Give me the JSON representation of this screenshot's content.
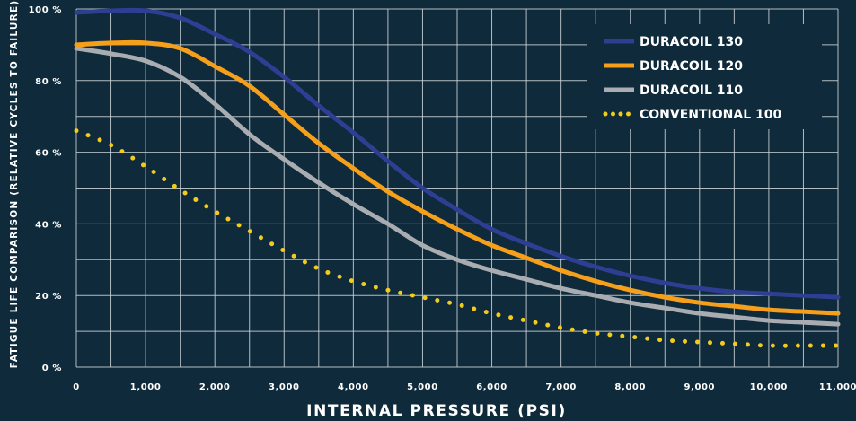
{
  "chart_data": {
    "type": "line",
    "title": "",
    "xlabel": "INTERNAL PRESSURE (PSI)",
    "ylabel": "FATIGUE LIFE COMPARISON (RELATIVE CYCLES TO FAILURE)",
    "xlim": [
      0,
      11000
    ],
    "ylim": [
      0,
      100
    ],
    "x_ticks": [
      0,
      1000,
      2000,
      3000,
      4000,
      5000,
      6000,
      7000,
      8000,
      9000,
      10000,
      11000
    ],
    "x_tick_labels": [
      "0",
      "1,000",
      "2,000",
      "3,000",
      "4,000",
      "5,000",
      "6,000",
      "7,000",
      "8,000",
      "9,000",
      "10,000",
      "11,000"
    ],
    "y_ticks": [
      0,
      20,
      40,
      60,
      80,
      100
    ],
    "y_tick_labels": [
      "0 %",
      "20 %",
      "40 %",
      "60 %",
      "80 %",
      "100 %"
    ],
    "grid": true,
    "x_grid_step": 500,
    "y_grid_step": 10,
    "legend_position": "top-right",
    "background_color": "#0f2a3a",
    "grid_color": "#cfd6db",
    "series": [
      {
        "name": "DURACOIL 130",
        "color": "#2e3f93",
        "style": "solid",
        "x": [
          0,
          500,
          1000,
          1500,
          2000,
          2500,
          3000,
          3500,
          4000,
          4500,
          5000,
          5500,
          6000,
          6500,
          7000,
          7500,
          8000,
          8500,
          9000,
          9500,
          10000,
          10500,
          11000
        ],
        "y": [
          99,
          99.5,
          99.5,
          97.5,
          93,
          88,
          81,
          73,
          65.5,
          57.5,
          50,
          44,
          38.5,
          34.5,
          31,
          28,
          25.5,
          23.5,
          22,
          21,
          20.5,
          20,
          19.5
        ]
      },
      {
        "name": "DURACOIL 120",
        "color": "#f59f1b",
        "style": "solid",
        "x": [
          0,
          500,
          1000,
          1500,
          2000,
          2500,
          3000,
          3500,
          4000,
          4500,
          5000,
          5500,
          6000,
          6500,
          7000,
          7500,
          8000,
          8500,
          9000,
          9500,
          10000,
          10500,
          11000
        ],
        "y": [
          90,
          90.5,
          90.5,
          89,
          84,
          78.5,
          70.5,
          62.5,
          55.5,
          49,
          43.5,
          38.5,
          34,
          30.5,
          27,
          24,
          21.5,
          19.5,
          18,
          17,
          16,
          15.5,
          15
        ]
      },
      {
        "name": "DURACOIL 110",
        "color": "#a9adb1",
        "style": "solid",
        "x": [
          0,
          500,
          1000,
          1500,
          2000,
          2500,
          3000,
          3500,
          4000,
          4500,
          5000,
          5500,
          6000,
          6500,
          7000,
          7500,
          8000,
          8500,
          9000,
          9500,
          10000,
          10500,
          11000
        ],
        "y": [
          89,
          87.5,
          85.5,
          81,
          73.5,
          65,
          58,
          51.5,
          45.5,
          40,
          34,
          30,
          27,
          24.5,
          22,
          20,
          18,
          16.5,
          15,
          14,
          13,
          12.5,
          12
        ]
      },
      {
        "name": "CONVENTIONAL 100",
        "color": "#f2cc1d",
        "style": "dotted",
        "x": [
          0,
          500,
          1000,
          1500,
          2000,
          2500,
          3000,
          3500,
          4000,
          4500,
          5000,
          5500,
          6000,
          6500,
          7000,
          7500,
          8000,
          8500,
          9000,
          9500,
          10000,
          10500,
          11000
        ],
        "y": [
          66,
          62,
          56,
          49.5,
          43.5,
          38,
          32.5,
          27.5,
          24,
          21.5,
          19.5,
          17.5,
          15,
          13,
          11,
          9.5,
          8.5,
          7.5,
          7,
          6.5,
          6,
          6,
          6
        ]
      }
    ]
  }
}
